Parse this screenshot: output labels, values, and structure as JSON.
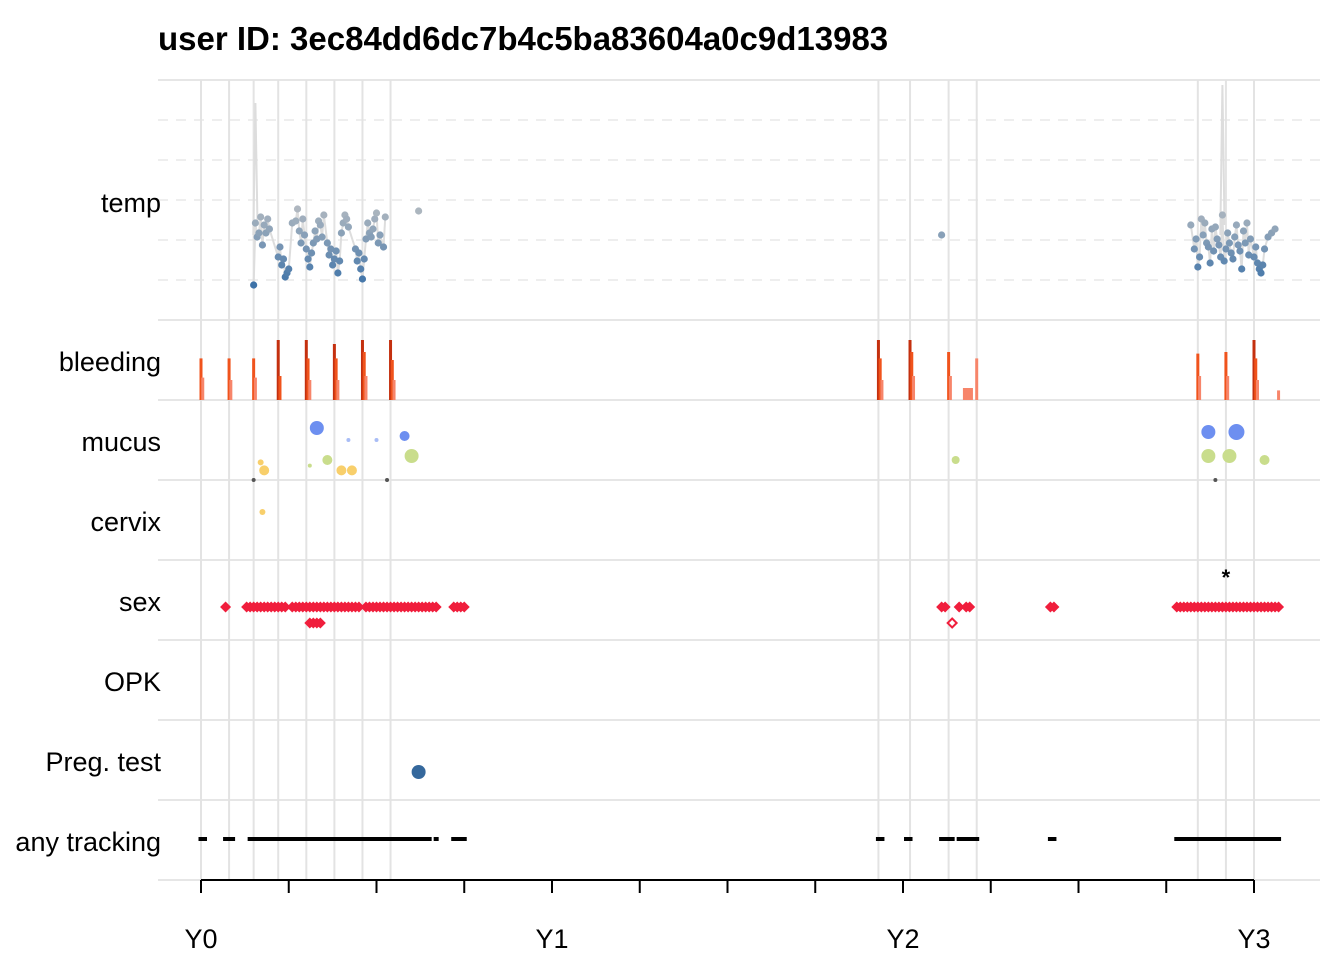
{
  "title": "user ID:  3ec84dd6dc7b4c5ba83604a0c9d13983",
  "colors": {
    "grid": "#e6e6e6",
    "cycle_line": "#e3e3e3",
    "temp_line": "#dddddd",
    "temp_high": "#c4c4c4",
    "temp_low": "#2f6aa5",
    "bleeding_heavy": "#c4300f",
    "bleeding_medium": "#f0531c",
    "bleeding_light": "#f7856a",
    "mucus_blue": "#6d8ff0",
    "mucus_blue_light": "#a9bdf6",
    "mucus_green": "#c9dd8c",
    "mucus_yellow": "#f8cf6b",
    "mucus_dark": "#555555",
    "sex": "#f01e3c",
    "preg_test": "#35689c",
    "tracking": "#000000"
  },
  "chart_data": {
    "type": "scatter",
    "title": "user ID:  3ec84dd6dc7b4c5ba83604a0c9d13983",
    "x_unit": "years",
    "xlim": [
      -0.03,
      3.17
    ],
    "x_ticks": [
      0,
      0.25,
      0.5,
      0.75,
      1,
      1.25,
      1.5,
      1.75,
      2,
      2.25,
      2.5,
      2.75,
      3
    ],
    "x_tick_labels": [
      {
        "x": 0,
        "label": "Y0"
      },
      {
        "x": 1,
        "label": "Y1"
      },
      {
        "x": 2,
        "label": "Y2"
      },
      {
        "x": 3,
        "label": "Y3"
      }
    ],
    "rows": [
      "temp",
      "bleeding",
      "mucus",
      "cervix",
      "sex",
      "OPK",
      "Preg. test",
      "any tracking"
    ],
    "cycle_starts": [
      0.0,
      0.08,
      0.15,
      0.22,
      0.3,
      0.38,
      0.46,
      0.54,
      1.93,
      2.02,
      2.13,
      2.21,
      2.84,
      2.92,
      3.0
    ],
    "temp": [
      [
        0.15,
        0.1
      ],
      [
        0.155,
        0.72
      ],
      [
        0.16,
        0.58
      ],
      [
        0.165,
        0.62
      ],
      [
        0.17,
        0.78
      ],
      [
        0.175,
        0.5
      ],
      [
        0.18,
        0.7
      ],
      [
        0.185,
        0.62
      ],
      [
        0.19,
        0.76
      ],
      [
        0.195,
        0.66
      ],
      [
        0.22,
        0.38
      ],
      [
        0.225,
        0.48
      ],
      [
        0.23,
        0.3
      ],
      [
        0.235,
        0.36
      ],
      [
        0.24,
        0.18
      ],
      [
        0.245,
        0.22
      ],
      [
        0.25,
        0.26
      ],
      [
        0.26,
        0.72
      ],
      [
        0.27,
        0.74
      ],
      [
        0.275,
        0.86
      ],
      [
        0.28,
        0.64
      ],
      [
        0.285,
        0.52
      ],
      [
        0.29,
        0.76
      ],
      [
        0.295,
        0.6
      ],
      [
        0.3,
        0.46
      ],
      [
        0.305,
        0.36
      ],
      [
        0.31,
        0.28
      ],
      [
        0.315,
        0.42
      ],
      [
        0.32,
        0.52
      ],
      [
        0.325,
        0.64
      ],
      [
        0.33,
        0.56
      ],
      [
        0.335,
        0.74
      ],
      [
        0.34,
        0.7
      ],
      [
        0.345,
        0.58
      ],
      [
        0.35,
        0.8
      ],
      [
        0.36,
        0.52
      ],
      [
        0.365,
        0.4
      ],
      [
        0.37,
        0.46
      ],
      [
        0.375,
        0.3
      ],
      [
        0.38,
        0.36
      ],
      [
        0.385,
        0.44
      ],
      [
        0.39,
        0.22
      ],
      [
        0.395,
        0.34
      ],
      [
        0.4,
        0.62
      ],
      [
        0.405,
        0.72
      ],
      [
        0.41,
        0.8
      ],
      [
        0.415,
        0.76
      ],
      [
        0.42,
        0.68
      ],
      [
        0.44,
        0.46
      ],
      [
        0.445,
        0.34
      ],
      [
        0.45,
        0.42
      ],
      [
        0.455,
        0.26
      ],
      [
        0.46,
        0.16
      ],
      [
        0.465,
        0.36
      ],
      [
        0.47,
        0.56
      ],
      [
        0.475,
        0.72
      ],
      [
        0.48,
        0.62
      ],
      [
        0.485,
        0.58
      ],
      [
        0.49,
        0.66
      ],
      [
        0.495,
        0.76
      ],
      [
        0.5,
        0.82
      ],
      [
        0.505,
        0.52
      ],
      [
        0.51,
        0.6
      ],
      [
        0.52,
        0.48
      ],
      [
        0.525,
        0.78
      ],
      [
        0.62,
        0.84
      ],
      [
        2.11,
        0.6
      ],
      [
        2.82,
        0.7
      ],
      [
        2.83,
        0.46
      ],
      [
        2.835,
        0.56
      ],
      [
        2.84,
        0.28
      ],
      [
        2.845,
        0.38
      ],
      [
        2.85,
        0.76
      ],
      [
        2.855,
        0.6
      ],
      [
        2.86,
        0.72
      ],
      [
        2.865,
        0.52
      ],
      [
        2.87,
        0.48
      ],
      [
        2.875,
        0.32
      ],
      [
        2.88,
        0.66
      ],
      [
        2.885,
        0.44
      ],
      [
        2.89,
        0.68
      ],
      [
        2.895,
        0.56
      ],
      [
        2.9,
        0.5
      ],
      [
        2.905,
        0.38
      ],
      [
        2.91,
        0.8
      ],
      [
        2.915,
        0.34
      ],
      [
        2.92,
        0.46
      ],
      [
        2.925,
        0.62
      ],
      [
        2.93,
        0.52
      ],
      [
        2.935,
        0.42
      ],
      [
        2.94,
        0.36
      ],
      [
        2.945,
        0.58
      ],
      [
        2.95,
        0.7
      ],
      [
        2.955,
        0.5
      ],
      [
        2.96,
        0.44
      ],
      [
        2.965,
        0.26
      ],
      [
        2.97,
        0.64
      ],
      [
        2.975,
        0.52
      ],
      [
        2.98,
        0.72
      ],
      [
        2.985,
        0.4
      ],
      [
        2.99,
        0.56
      ],
      [
        3.0,
        0.38
      ],
      [
        3.005,
        0.48
      ],
      [
        3.01,
        0.32
      ],
      [
        3.015,
        0.26
      ],
      [
        3.02,
        0.22
      ],
      [
        3.025,
        0.3
      ],
      [
        3.03,
        0.46
      ],
      [
        3.04,
        0.58
      ],
      [
        3.05,
        0.62
      ],
      [
        3.06,
        0.66
      ]
    ],
    "temp_spikes": [
      [
        0.155,
        1.92
      ],
      [
        2.91,
        2.1
      ]
    ],
    "bleeding": [
      [
        0.0,
        0.52,
        1
      ],
      [
        0.005,
        0.28,
        0
      ],
      [
        0.08,
        0.52,
        1
      ],
      [
        0.085,
        0.25,
        0
      ],
      [
        0.15,
        0.52,
        1
      ],
      [
        0.155,
        0.28,
        0
      ],
      [
        0.22,
        0.75,
        2
      ],
      [
        0.225,
        0.3,
        1
      ],
      [
        0.3,
        0.75,
        2
      ],
      [
        0.305,
        0.52,
        1
      ],
      [
        0.31,
        0.25,
        0
      ],
      [
        0.38,
        0.7,
        2
      ],
      [
        0.385,
        0.52,
        1
      ],
      [
        0.39,
        0.25,
        0
      ],
      [
        0.46,
        0.75,
        2
      ],
      [
        0.465,
        0.6,
        1
      ],
      [
        0.47,
        0.3,
        0
      ],
      [
        0.54,
        0.75,
        2
      ],
      [
        0.545,
        0.5,
        1
      ],
      [
        0.55,
        0.25,
        0
      ],
      [
        1.93,
        0.75,
        2
      ],
      [
        1.935,
        0.52,
        1
      ],
      [
        1.94,
        0.25,
        0
      ],
      [
        2.02,
        0.75,
        2
      ],
      [
        2.025,
        0.6,
        1
      ],
      [
        2.03,
        0.3,
        0
      ],
      [
        2.13,
        0.6,
        1
      ],
      [
        2.135,
        0.3,
        0
      ],
      [
        2.175,
        0.15,
        0
      ],
      [
        2.18,
        0.15,
        0
      ],
      [
        2.185,
        0.15,
        0
      ],
      [
        2.19,
        0.15,
        0
      ],
      [
        2.195,
        0.15,
        0
      ],
      [
        2.21,
        0.52,
        0
      ],
      [
        2.84,
        0.58,
        1
      ],
      [
        2.845,
        0.3,
        0
      ],
      [
        2.92,
        0.6,
        1
      ],
      [
        2.925,
        0.3,
        0
      ],
      [
        3.0,
        0.75,
        2
      ],
      [
        3.005,
        0.52,
        1
      ],
      [
        3.01,
        0.25,
        0
      ],
      [
        3.07,
        0.12,
        0
      ]
    ],
    "mucus": [
      [
        0.33,
        0.35,
        7,
        "blue"
      ],
      [
        0.42,
        0.5,
        2,
        "blue_light"
      ],
      [
        0.5,
        0.5,
        2,
        "blue_light"
      ],
      [
        0.58,
        0.45,
        5,
        "blue"
      ],
      [
        0.17,
        0.78,
        3,
        "yellow"
      ],
      [
        0.18,
        0.88,
        5,
        "yellow"
      ],
      [
        0.31,
        0.82,
        2,
        "green"
      ],
      [
        0.36,
        0.75,
        5,
        "green"
      ],
      [
        0.4,
        0.88,
        5,
        "yellow"
      ],
      [
        0.43,
        0.88,
        5,
        "yellow"
      ],
      [
        0.6,
        0.7,
        7,
        "green"
      ],
      [
        0.15,
        1.0,
        2,
        "dark"
      ],
      [
        0.53,
        1.0,
        2,
        "dark"
      ],
      [
        2.15,
        0.75,
        4,
        "green"
      ],
      [
        2.87,
        0.4,
        7,
        "blue"
      ],
      [
        2.95,
        0.4,
        8,
        "blue"
      ],
      [
        2.87,
        0.7,
        7,
        "green"
      ],
      [
        2.93,
        0.7,
        7,
        "green"
      ],
      [
        3.03,
        0.75,
        5,
        "green"
      ],
      [
        2.89,
        1.0,
        2,
        "dark"
      ]
    ],
    "cervix": [
      [
        0.175,
        0.4,
        3,
        "yellow"
      ]
    ],
    "sex": [
      0.07,
      0.13,
      0.14,
      0.15,
      0.16,
      0.17,
      0.18,
      0.19,
      0.2,
      0.21,
      0.22,
      0.23,
      0.24,
      0.26,
      0.27,
      0.28,
      0.29,
      0.3,
      0.31,
      0.32,
      0.33,
      0.34,
      0.35,
      0.36,
      0.37,
      0.38,
      0.39,
      0.4,
      0.41,
      0.42,
      0.43,
      0.44,
      0.45,
      0.47,
      0.48,
      0.49,
      0.5,
      0.51,
      0.52,
      0.53,
      0.54,
      0.55,
      0.56,
      0.57,
      0.58,
      0.59,
      0.6,
      0.61,
      0.62,
      0.63,
      0.64,
      0.65,
      0.66,
      0.67,
      0.72,
      0.73,
      0.74,
      0.75,
      2.11,
      2.12,
      2.16,
      2.18,
      2.19,
      2.42,
      2.43,
      2.78,
      2.79,
      2.8,
      2.81,
      2.82,
      2.83,
      2.84,
      2.85,
      2.86,
      2.87,
      2.88,
      2.89,
      2.9,
      2.91,
      2.92,
      2.93,
      2.94,
      2.95,
      2.96,
      2.97,
      2.98,
      2.99,
      3.0,
      3.01,
      3.02,
      3.03,
      3.04,
      3.05,
      3.06,
      3.07
    ],
    "sex_second": [
      0.31,
      0.32,
      0.33,
      0.34
    ],
    "sex_open": [
      2.14
    ],
    "sex_star": [
      2.92
    ],
    "opk": [],
    "preg_test": [
      [
        0.62,
        0.5
      ]
    ],
    "tracking": [
      0.0,
      0.01,
      0.07,
      0.08,
      0.09,
      0.14,
      0.15,
      0.16,
      0.17,
      0.18,
      0.19,
      0.2,
      0.21,
      0.22,
      0.23,
      0.24,
      0.25,
      0.26,
      0.27,
      0.28,
      0.29,
      0.3,
      0.31,
      0.32,
      0.33,
      0.34,
      0.35,
      0.36,
      0.37,
      0.38,
      0.39,
      0.4,
      0.41,
      0.42,
      0.43,
      0.44,
      0.45,
      0.46,
      0.47,
      0.48,
      0.49,
      0.5,
      0.51,
      0.52,
      0.53,
      0.54,
      0.55,
      0.56,
      0.57,
      0.58,
      0.59,
      0.6,
      0.61,
      0.62,
      0.63,
      0.64,
      0.65,
      0.67,
      0.72,
      0.73,
      0.74,
      0.75,
      1.93,
      1.94,
      2.01,
      2.02,
      2.11,
      2.12,
      2.13,
      2.14,
      2.16,
      2.17,
      2.18,
      2.19,
      2.2,
      2.21,
      2.42,
      2.43,
      2.78,
      2.79,
      2.8,
      2.81,
      2.82,
      2.83,
      2.84,
      2.85,
      2.86,
      2.87,
      2.88,
      2.89,
      2.9,
      2.91,
      2.92,
      2.93,
      2.94,
      2.95,
      2.96,
      2.97,
      2.98,
      2.99,
      3.0,
      3.01,
      3.02,
      3.03,
      3.04,
      3.05,
      3.06,
      3.07
    ]
  }
}
